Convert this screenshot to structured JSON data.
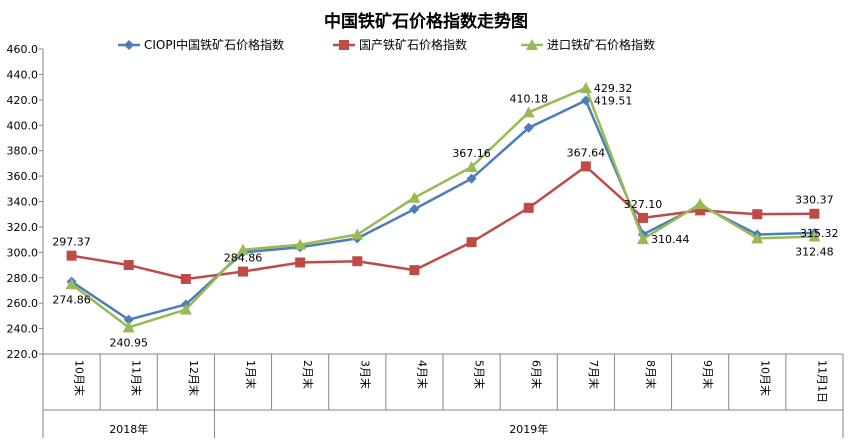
{
  "chart_data": {
    "type": "line",
    "title": "中国铁矿石价格指数走势图",
    "categories": [
      "10月末",
      "11月末",
      "12月末",
      "1月末",
      "2月末",
      "3月末",
      "4月末",
      "5月末",
      "6月末",
      "7月末",
      "8月末",
      "9月末",
      "10月末",
      "11月1日"
    ],
    "groups": [
      {
        "label": "2018年",
        "start": 0,
        "end": 2
      },
      {
        "label": "2019年",
        "start": 3,
        "end": 13
      }
    ],
    "ylim": [
      220,
      460
    ],
    "yticks": [
      "220.0",
      "240.0",
      "260.0",
      "280.0",
      "300.0",
      "320.0",
      "340.0",
      "360.0",
      "380.0",
      "400.0",
      "420.0",
      "440.0",
      "460.0"
    ],
    "legend_position": "top",
    "series": [
      {
        "name": "CIOPI中国铁矿石价格指数",
        "color": "#4a7ebb",
        "marker": "diamond",
        "values": [
          277,
          247,
          259,
          300,
          304,
          311,
          334,
          358,
          398,
          419.51,
          314,
          337,
          314,
          315.32
        ]
      },
      {
        "name": "国产铁矿石价格指数",
        "color": "#be4b48",
        "marker": "square",
        "values": [
          297.37,
          290,
          279,
          284.86,
          292,
          293,
          286,
          308,
          335,
          367.64,
          327.1,
          333,
          330,
          330.37
        ]
      },
      {
        "name": "进口铁矿石价格指数",
        "color": "#98b954",
        "marker": "triangle",
        "values": [
          274.86,
          240.95,
          255,
          302,
          306,
          314,
          343,
          367.16,
          410.18,
          429.32,
          310.44,
          338,
          311,
          312.48
        ]
      }
    ],
    "annotations": [
      {
        "text": "297.37",
        "series": 1,
        "index": 0,
        "pos": "above"
      },
      {
        "text": "274.86",
        "series": 2,
        "index": 0,
        "pos": "below"
      },
      {
        "text": "240.95",
        "series": 2,
        "index": 1,
        "pos": "below"
      },
      {
        "text": "284.86",
        "series": 1,
        "index": 3,
        "pos": "above"
      },
      {
        "text": "367.16",
        "series": 2,
        "index": 7,
        "pos": "above"
      },
      {
        "text": "410.18",
        "series": 2,
        "index": 8,
        "pos": "above"
      },
      {
        "text": "429.32",
        "series": 2,
        "index": 9,
        "pos": "right"
      },
      {
        "text": "419.51",
        "series": 0,
        "index": 9,
        "pos": "right"
      },
      {
        "text": "367.64",
        "series": 1,
        "index": 9,
        "pos": "above"
      },
      {
        "text": "327.10",
        "series": 1,
        "index": 10,
        "pos": "above"
      },
      {
        "text": "310.44",
        "series": 2,
        "index": 10,
        "pos": "right"
      },
      {
        "text": "330.37",
        "series": 1,
        "index": 13,
        "pos": "above"
      },
      {
        "text": "315.32",
        "series": 0,
        "index": 13,
        "pos": "right"
      },
      {
        "text": "312.48",
        "series": 2,
        "index": 13,
        "pos": "below"
      }
    ]
  }
}
